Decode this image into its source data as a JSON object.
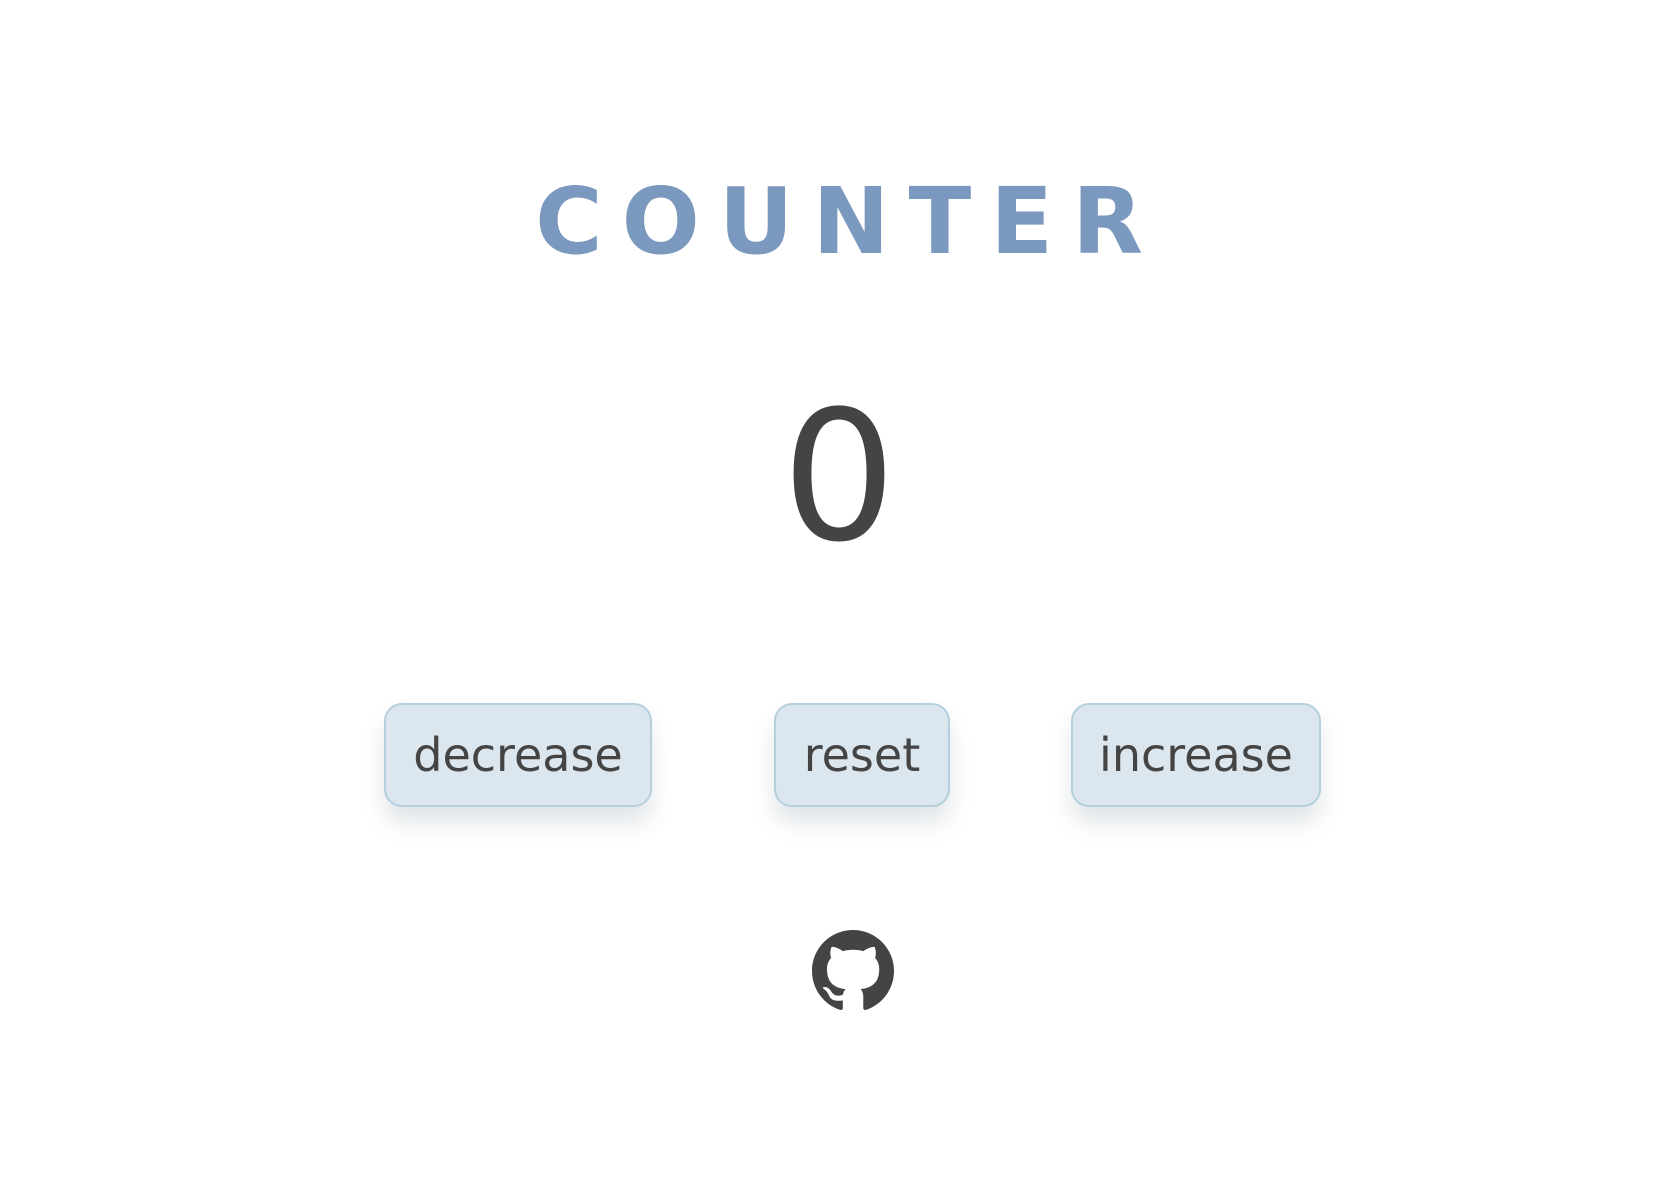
{
  "header": {
    "title": "COUNTER"
  },
  "counter": {
    "value": "0"
  },
  "controls": {
    "decrease_label": "decrease",
    "reset_label": "reset",
    "increase_label": "increase"
  },
  "footer": {
    "icon": "github-icon"
  },
  "colors": {
    "title": "#7b98bf",
    "text": "#444444",
    "button_bg": "#dbe6ee",
    "button_border": "#b6cfdd",
    "background": "#ffffff"
  }
}
